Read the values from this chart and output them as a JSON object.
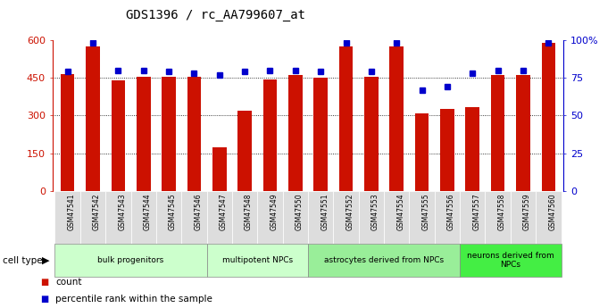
{
  "title": "GDS1396 / rc_AA799607_at",
  "samples": [
    "GSM47541",
    "GSM47542",
    "GSM47543",
    "GSM47544",
    "GSM47545",
    "GSM47546",
    "GSM47547",
    "GSM47548",
    "GSM47549",
    "GSM47550",
    "GSM47551",
    "GSM47552",
    "GSM47553",
    "GSM47554",
    "GSM47555",
    "GSM47556",
    "GSM47557",
    "GSM47558",
    "GSM47559",
    "GSM47560"
  ],
  "counts": [
    465,
    575,
    440,
    455,
    453,
    455,
    175,
    320,
    442,
    462,
    452,
    575,
    455,
    575,
    310,
    326,
    335,
    462,
    462,
    590
  ],
  "percentiles": [
    79,
    98,
    80,
    80,
    79,
    78,
    77,
    79,
    80,
    80,
    79,
    98,
    79,
    98,
    67,
    69,
    78,
    80,
    80,
    98
  ],
  "cell_type_groups": [
    {
      "label": "bulk progenitors",
      "start": 0,
      "end": 6,
      "color": "#ccffcc"
    },
    {
      "label": "multipotent NPCs",
      "start": 6,
      "end": 10,
      "color": "#ccffcc"
    },
    {
      "label": "astrocytes derived from NPCs",
      "start": 10,
      "end": 16,
      "color": "#99ee99"
    },
    {
      "label": "neurons derived from\nNPCs",
      "start": 16,
      "end": 20,
      "color": "#44ee44"
    }
  ],
  "ylim_left": [
    0,
    600
  ],
  "ylim_right": [
    0,
    100
  ],
  "yticks_left": [
    0,
    150,
    300,
    450,
    600
  ],
  "yticks_right": [
    0,
    25,
    50,
    75,
    100
  ],
  "bar_color": "#cc1100",
  "dot_color": "#0000cc",
  "bar_width": 0.55,
  "background_color": "#ffffff",
  "grid_color": "#000000"
}
